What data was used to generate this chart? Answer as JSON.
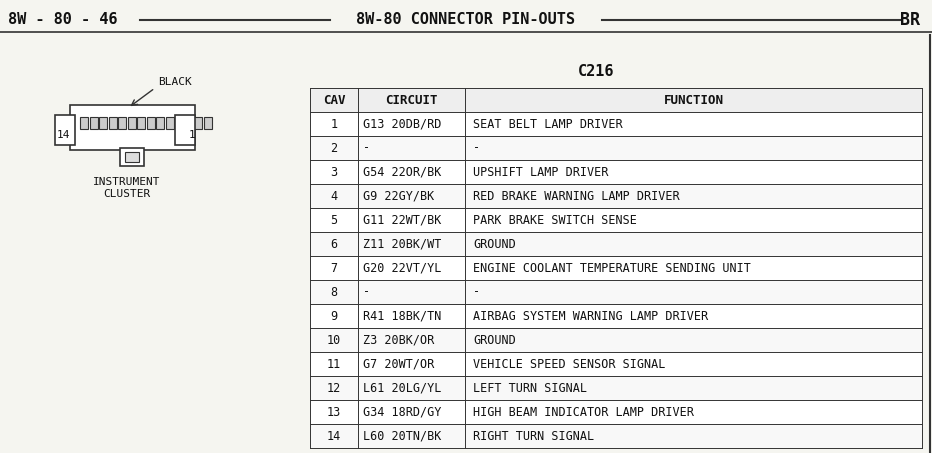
{
  "title_left": "8W - 80 - 46",
  "title_center": "8W-80 CONNECTOR PIN-OUTS",
  "title_right": "BR",
  "connector_label": "C216",
  "connector_sublabel": "BLACK",
  "diagram_label1": "INSTRUMENT",
  "diagram_label2": "CLUSTER",
  "pin_14": "14",
  "pin_1": "1",
  "table_title": "C216",
  "headers": [
    "CAV",
    "CIRCUIT",
    "FUNCTION"
  ],
  "rows": [
    [
      "1",
      "G13 20DB/RD",
      "SEAT BELT LAMP DRIVER"
    ],
    [
      "2",
      "-",
      "-"
    ],
    [
      "3",
      "G54 22OR/BK",
      "UPSHIFT LAMP DRIVER"
    ],
    [
      "4",
      "G9 22GY/BK",
      "RED BRAKE WARNING LAMP DRIVER"
    ],
    [
      "5",
      "G11 22WT/BK",
      "PARK BRAKE SWITCH SENSE"
    ],
    [
      "6",
      "Z11 20BK/WT",
      "GROUND"
    ],
    [
      "7",
      "G20 22VT/YL",
      "ENGINE COOLANT TEMPERATURE SENDING UNIT"
    ],
    [
      "8",
      "-",
      "-"
    ],
    [
      "9",
      "R41 18BK/TN",
      "AIRBAG SYSTEM WARNING LAMP DRIVER"
    ],
    [
      "10",
      "Z3 20BK/OR",
      "GROUND"
    ],
    [
      "11",
      "G7 20WT/OR",
      "VEHICLE SPEED SENSOR SIGNAL"
    ],
    [
      "12",
      "L61 20LG/YL",
      "LEFT TURN SIGNAL"
    ],
    [
      "13",
      "G34 18RD/GY",
      "HIGH BEAM INDICATOR LAMP DRIVER"
    ],
    [
      "14",
      "L60 20TN/BK",
      "RIGHT TURN SIGNAL"
    ]
  ],
  "bg_color": "#f5f5f0",
  "table_bg": "#ffffff",
  "text_color": "#111111",
  "line_color": "#333333",
  "font_family": "monospace"
}
